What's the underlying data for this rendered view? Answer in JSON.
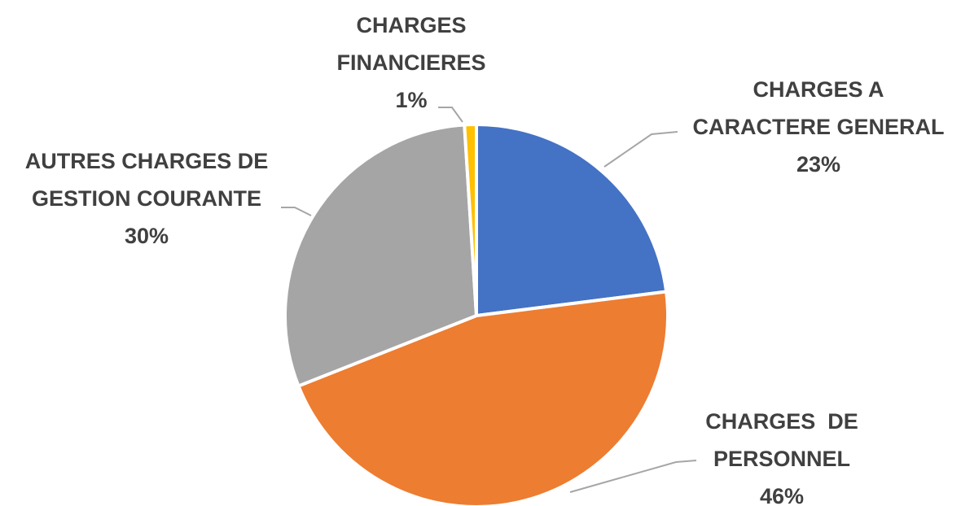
{
  "chart_data": {
    "type": "pie",
    "categories": [
      "CHARGES A\nCARACTERE GENERAL",
      "CHARGES  DE\nPERSONNEL",
      "AUTRES CHARGES DE\nGESTION COURANTE",
      "CHARGES\nFINANCIERES"
    ],
    "values": [
      23,
      46,
      30,
      1
    ],
    "value_labels": [
      "23%",
      "46%",
      "30%",
      "1%"
    ],
    "colors": [
      "#4472c4",
      "#ed7d31",
      "#a5a5a5",
      "#ffc000"
    ]
  }
}
